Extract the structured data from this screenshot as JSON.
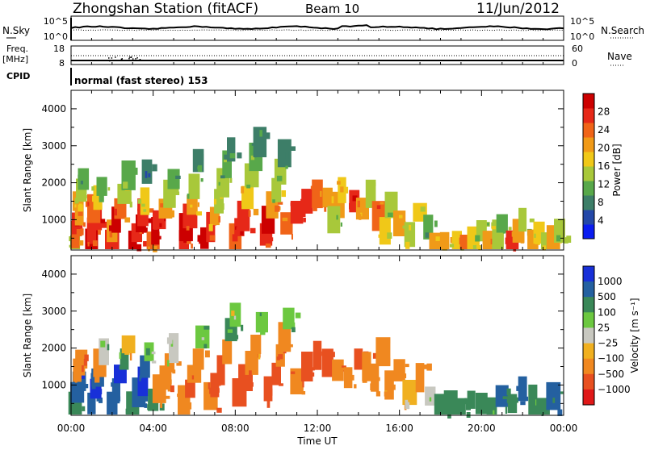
{
  "header": {
    "title": "Zhongshan Station (fitACF)",
    "beam": "Beam 10",
    "date": "11/Jun/2012"
  },
  "top_panels": {
    "nsky": {
      "label": "N.Sky",
      "right_label": "N.Search",
      "tick_top": "10^5",
      "tick_bottom": "10^0",
      "rtick_top": "10^5",
      "rtick_bottom": "10^0"
    },
    "freq": {
      "label_line1": "Freq.",
      "label_line2": "[MHz]",
      "right_label": "Nave",
      "tick_top": "18",
      "tick_bottom": "8",
      "rtick_top": "60",
      "rtick_bottom": "0"
    },
    "cpid": {
      "label": "CPID",
      "mode_text": "normal (fast stereo) 153"
    }
  },
  "power_panel": {
    "ylabel": "Slant Range [km]",
    "yticks": [
      "1000",
      "2000",
      "3000",
      "4000"
    ],
    "colorbar_label": "Power [dB]",
    "colorbar_ticks": [
      "4",
      "8",
      "12",
      "16",
      "20",
      "24",
      "28"
    ],
    "colors": [
      "#0a1cf0",
      "#2448a8",
      "#3d7e68",
      "#58a84a",
      "#a8c83a",
      "#f0c818",
      "#f09a18",
      "#f06418",
      "#e62818",
      "#cc0000"
    ]
  },
  "velocity_panel": {
    "ylabel": "Slant Range [km]",
    "yticks": [
      "1000",
      "2000",
      "3000",
      "4000"
    ],
    "colorbar_label": "Velocity [m s⁻¹]",
    "colorbar_ticks": [
      "1000",
      "500",
      "100",
      "25",
      "−25",
      "−100",
      "−500",
      "−1000"
    ],
    "colors": [
      "#1830d8",
      "#2460a0",
      "#3a8858",
      "#6cc840",
      "#c8c8c0",
      "#f0b020",
      "#f08820",
      "#e85020",
      "#e01818"
    ]
  },
  "xaxis": {
    "xlabel": "Time UT",
    "ticks": [
      "00:00",
      "04:00",
      "08:00",
      "12:00",
      "16:00",
      "20:00",
      "00:00"
    ]
  },
  "chart_data": [
    {
      "type": "heatmap",
      "title": "Power [dB]",
      "xlabel": "Time UT",
      "ylabel": "Slant Range [km]",
      "xlim": [
        0,
        24
      ],
      "ylim": [
        180,
        4500
      ],
      "colorbar_range": [
        0,
        30
      ],
      "cells": [
        [
          0.2,
          300,
          14
        ],
        [
          0.2,
          600,
          22
        ],
        [
          0.3,
          900,
          26
        ],
        [
          0.4,
          1200,
          20
        ],
        [
          0.3,
          1500,
          18
        ],
        [
          0.5,
          1800,
          12
        ],
        [
          0.6,
          2100,
          10
        ],
        [
          1.0,
          400,
          28
        ],
        [
          1.0,
          700,
          24
        ],
        [
          1.2,
          1000,
          26
        ],
        [
          1.1,
          1300,
          22
        ],
        [
          1.3,
          1600,
          16
        ],
        [
          1.5,
          1900,
          10
        ],
        [
          2.0,
          400,
          26
        ],
        [
          2.0,
          700,
          20
        ],
        [
          2.2,
          1000,
          28
        ],
        [
          2.4,
          1300,
          22
        ],
        [
          2.6,
          1700,
          14
        ],
        [
          2.8,
          2200,
          10
        ],
        [
          3.0,
          350,
          28
        ],
        [
          3.2,
          650,
          24
        ],
        [
          3.4,
          900,
          28
        ],
        [
          3.5,
          1200,
          24
        ],
        [
          3.6,
          1500,
          16
        ],
        [
          3.7,
          2300,
          8
        ],
        [
          4.0,
          400,
          22
        ],
        [
          4.1,
          700,
          28
        ],
        [
          4.3,
          1000,
          26
        ],
        [
          4.6,
          1300,
          20
        ],
        [
          4.8,
          1700,
          12
        ],
        [
          5.0,
          2100,
          10
        ],
        [
          5.5,
          400,
          24
        ],
        [
          5.6,
          800,
          28
        ],
        [
          5.8,
          1100,
          26
        ],
        [
          5.9,
          1400,
          18
        ],
        [
          6.0,
          1900,
          12
        ],
        [
          6.2,
          2600,
          8
        ],
        [
          6.5,
          500,
          28
        ],
        [
          6.8,
          800,
          24
        ],
        [
          7.0,
          1100,
          20
        ],
        [
          7.2,
          1500,
          14
        ],
        [
          7.4,
          2000,
          12
        ],
        [
          7.6,
          2500,
          10
        ],
        [
          7.8,
          2900,
          8
        ],
        [
          8.0,
          500,
          22
        ],
        [
          8.2,
          800,
          26
        ],
        [
          8.4,
          1100,
          24
        ],
        [
          8.6,
          1600,
          16
        ],
        [
          8.8,
          2200,
          12
        ],
        [
          9.0,
          2700,
          10
        ],
        [
          9.2,
          3100,
          8
        ],
        [
          9.5,
          600,
          24
        ],
        [
          9.6,
          1000,
          28
        ],
        [
          9.8,
          1400,
          20
        ],
        [
          10.0,
          1800,
          14
        ],
        [
          10.2,
          2300,
          12
        ],
        [
          10.4,
          2800,
          8
        ],
        [
          10.5,
          900,
          22
        ],
        [
          11.0,
          1200,
          26
        ],
        [
          11.5,
          1500,
          24
        ],
        [
          12.0,
          1700,
          22
        ],
        [
          12.5,
          1600,
          20
        ],
        [
          13.0,
          1400,
          18
        ],
        [
          12.8,
          1000,
          12
        ],
        [
          13.2,
          1800,
          16
        ],
        [
          13.8,
          1500,
          26
        ],
        [
          14.2,
          1300,
          20
        ],
        [
          14.6,
          1700,
          14
        ],
        [
          15.0,
          1100,
          22
        ],
        [
          15.3,
          700,
          16
        ],
        [
          15.6,
          1400,
          12
        ],
        [
          16.0,
          900,
          20
        ],
        [
          16.5,
          600,
          14
        ],
        [
          17.0,
          1200,
          16
        ],
        [
          17.4,
          800,
          10
        ],
        [
          17.8,
          300,
          18
        ],
        [
          18.2,
          400,
          20
        ],
        [
          18.8,
          350,
          16
        ],
        [
          19.2,
          300,
          22
        ],
        [
          19.6,
          500,
          16
        ],
        [
          20.0,
          700,
          12
        ],
        [
          20.4,
          350,
          20
        ],
        [
          20.8,
          600,
          14
        ],
        [
          21.0,
          900,
          10
        ],
        [
          21.5,
          400,
          24
        ],
        [
          21.8,
          700,
          18
        ],
        [
          22.0,
          1000,
          12
        ],
        [
          22.5,
          400,
          20
        ],
        [
          22.8,
          650,
          16
        ],
        [
          23.2,
          300,
          14
        ],
        [
          23.5,
          500,
          18
        ],
        [
          23.8,
          700,
          12
        ]
      ]
    },
    {
      "type": "heatmap",
      "title": "Velocity [m s⁻¹]",
      "xlabel": "Time UT",
      "ylabel": "Slant Range [km]",
      "xlim": [
        0,
        24
      ],
      "ylim": [
        180,
        4500
      ],
      "colorbar_range": [
        -1000,
        1000
      ],
      "cells": [
        [
          0.2,
          500,
          150
        ],
        [
          0.3,
          800,
          500
        ],
        [
          0.4,
          1100,
          700
        ],
        [
          0.3,
          1400,
          -150
        ],
        [
          0.5,
          1700,
          -300
        ],
        [
          1.0,
          500,
          300
        ],
        [
          1.2,
          900,
          800
        ],
        [
          1.3,
          1200,
          600
        ],
        [
          1.4,
          1600,
          -200
        ],
        [
          1.6,
          1900,
          20
        ],
        [
          2.0,
          500,
          400
        ],
        [
          2.2,
          900,
          700
        ],
        [
          2.4,
          1300,
          900
        ],
        [
          2.6,
          1700,
          100
        ],
        [
          2.8,
          2100,
          -50
        ],
        [
          3.0,
          500,
          200
        ],
        [
          3.3,
          800,
          600
        ],
        [
          3.5,
          1100,
          800
        ],
        [
          3.6,
          1500,
          300
        ],
        [
          3.8,
          1900,
          50
        ],
        [
          4.0,
          600,
          150
        ],
        [
          4.3,
          900,
          -150
        ],
        [
          4.6,
          1200,
          -300
        ],
        [
          4.8,
          1600,
          -200
        ],
        [
          5.0,
          2000,
          20
        ],
        [
          5.5,
          600,
          -200
        ],
        [
          5.8,
          900,
          -400
        ],
        [
          6.0,
          1300,
          -300
        ],
        [
          6.2,
          1700,
          -150
        ],
        [
          6.4,
          2300,
          60
        ],
        [
          6.8,
          700,
          -300
        ],
        [
          7.0,
          1000,
          -500
        ],
        [
          7.3,
          1400,
          -350
        ],
        [
          7.6,
          1900,
          -150
        ],
        [
          7.8,
          2500,
          80
        ],
        [
          8.0,
          2900,
          40
        ],
        [
          8.2,
          800,
          -400
        ],
        [
          8.5,
          1200,
          -600
        ],
        [
          8.8,
          1600,
          -300
        ],
        [
          9.0,
          2100,
          -120
        ],
        [
          9.3,
          2700,
          60
        ],
        [
          9.6,
          900,
          -500
        ],
        [
          10.0,
          1300,
          -400
        ],
        [
          10.2,
          1800,
          -300
        ],
        [
          10.4,
          2300,
          -150
        ],
        [
          10.6,
          2800,
          40
        ],
        [
          11.0,
          1100,
          -300
        ],
        [
          11.5,
          1500,
          -450
        ],
        [
          12.0,
          1800,
          -400
        ],
        [
          12.5,
          1600,
          -350
        ],
        [
          13.0,
          1400,
          -300
        ],
        [
          13.5,
          1200,
          -250
        ],
        [
          14.0,
          1700,
          -400
        ],
        [
          14.4,
          1500,
          -300
        ],
        [
          14.8,
          1200,
          -200
        ],
        [
          15.2,
          1900,
          -150
        ],
        [
          15.5,
          1000,
          -100
        ],
        [
          16.0,
          1400,
          -200
        ],
        [
          16.5,
          800,
          -60
        ],
        [
          17.0,
          1200,
          -150
        ],
        [
          17.5,
          700,
          20
        ],
        [
          18.0,
          400,
          150
        ],
        [
          18.5,
          500,
          80
        ],
        [
          19.0,
          400,
          120
        ],
        [
          19.5,
          600,
          200
        ],
        [
          20.0,
          500,
          150
        ],
        [
          20.5,
          400,
          100
        ],
        [
          21.0,
          700,
          300
        ],
        [
          21.5,
          500,
          150
        ],
        [
          22.0,
          900,
          500
        ],
        [
          22.5,
          600,
          120
        ],
        [
          23.0,
          400,
          150
        ],
        [
          23.5,
          700,
          300
        ]
      ]
    }
  ]
}
